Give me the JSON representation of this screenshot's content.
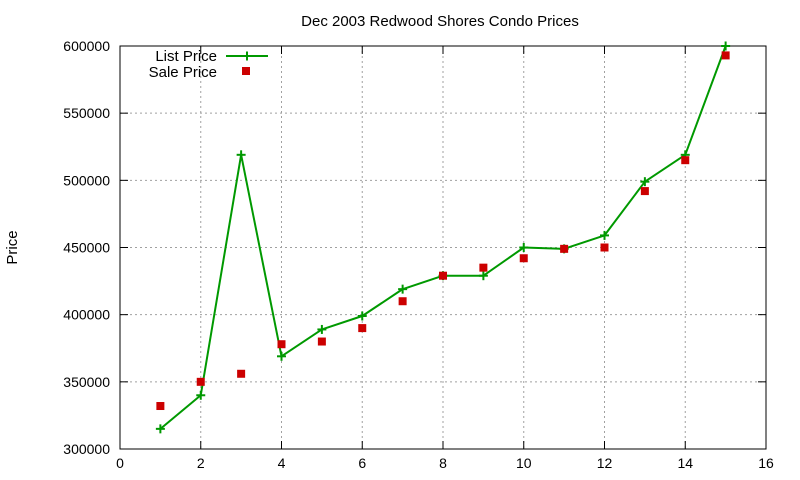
{
  "chart_data": {
    "type": "line",
    "title": "Dec 2003 Redwood Shores Condo Prices",
    "xlabel": "",
    "ylabel": "Price",
    "xlim": [
      0,
      16
    ],
    "ylim": [
      300000,
      600000
    ],
    "xticks": [
      0,
      2,
      4,
      6,
      8,
      10,
      12,
      14,
      16
    ],
    "yticks": [
      300000,
      350000,
      400000,
      450000,
      500000,
      550000,
      600000
    ],
    "grid": true,
    "legend_position": "top-left",
    "series": [
      {
        "name": "List Price",
        "style": "line+cross",
        "color": "#009900",
        "x": [
          1,
          2,
          3,
          4,
          5,
          6,
          7,
          8,
          9,
          10,
          11,
          12,
          13,
          14,
          15
        ],
        "y": [
          315000,
          340000,
          519000,
          369000,
          389000,
          399000,
          419000,
          429000,
          429000,
          450000,
          449000,
          459000,
          499000,
          519000,
          600000
        ]
      },
      {
        "name": "Sale Price",
        "style": "square",
        "color": "#cc0000",
        "x": [
          1,
          2,
          3,
          4,
          5,
          6,
          7,
          8,
          9,
          10,
          11,
          12,
          13,
          14,
          15
        ],
        "y": [
          332000,
          350000,
          356000,
          378000,
          380000,
          390000,
          410000,
          429000,
          435000,
          442000,
          449000,
          450000,
          492000,
          515000,
          593000
        ]
      }
    ]
  }
}
